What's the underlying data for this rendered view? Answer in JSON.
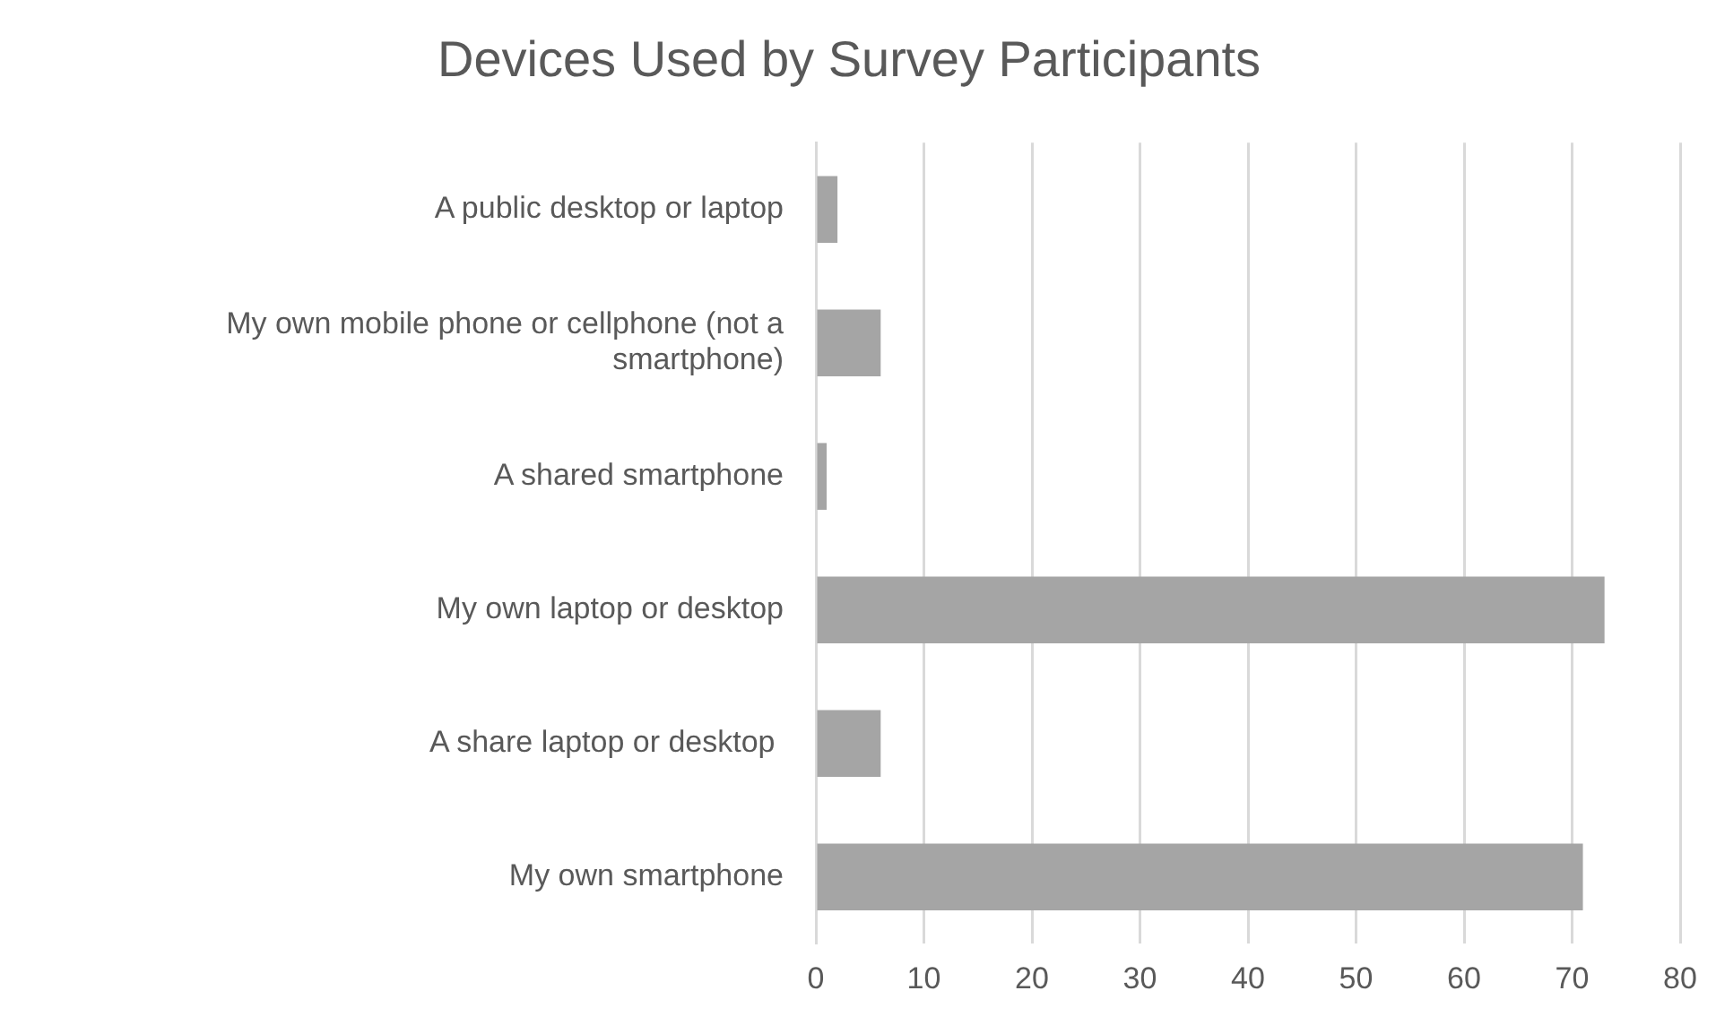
{
  "chart_data": {
    "type": "bar",
    "orientation": "horizontal",
    "title": "Devices Used by Survey Participants",
    "categories": [
      "A public desktop or laptop",
      "My own mobile phone or cellphone (not a smartphone)",
      "A shared smartphone",
      "My own laptop or desktop",
      "A share laptop or desktop ",
      "My own smartphone"
    ],
    "values": [
      2,
      6,
      1,
      73,
      6,
      71
    ],
    "color": "#a5a5a5",
    "xlim": [
      0,
      80
    ],
    "xticks": [
      0,
      10,
      20,
      30,
      40,
      50,
      60,
      70,
      80
    ],
    "grid": "x",
    "legend": false
  }
}
